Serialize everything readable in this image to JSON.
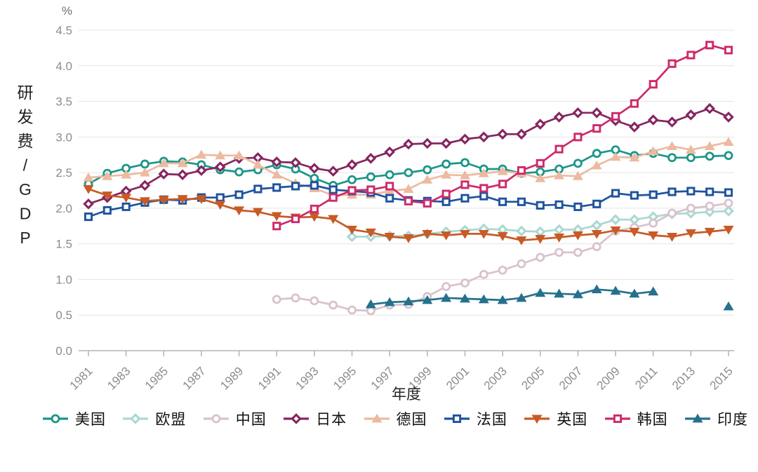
{
  "chart_data": {
    "type": "line",
    "title": "",
    "unit_label": "%",
    "ylabel": "研发费/GDP",
    "xlabel": "年度",
    "ylim": [
      0,
      4.5
    ],
    "y_ticks": [
      0.0,
      0.5,
      1.0,
      1.5,
      2.0,
      2.5,
      3.0,
      3.5,
      4.0,
      4.5
    ],
    "y_tick_labels": [
      "0.0",
      "0.5",
      "1.0",
      "1.5",
      "2.0",
      "2.5",
      "3.0",
      "3.5",
      "4.0",
      "4.5"
    ],
    "x_start": 1981,
    "x_end": 2015,
    "x_tick_labels": [
      "1981",
      "1983",
      "1985",
      "1987",
      "1989",
      "1991",
      "1993",
      "1995",
      "1997",
      "1999",
      "2001",
      "2003",
      "2005",
      "2007",
      "2009",
      "2011",
      "2013",
      "2015"
    ],
    "grid": true,
    "legend_position": "bottom",
    "axis_text_color": "#8c8c8c",
    "grid_color": "#e4e4e4",
    "axis_line_color": "#b3b3b3",
    "series": [
      {
        "name": "美国",
        "key": "usa",
        "color": "#1a9688",
        "marker": "circle",
        "start_year": 1981,
        "values": [
          2.34,
          2.49,
          2.56,
          2.62,
          2.66,
          2.65,
          2.61,
          2.54,
          2.51,
          2.54,
          2.61,
          2.55,
          2.42,
          2.32,
          2.4,
          2.44,
          2.47,
          2.5,
          2.54,
          2.62,
          2.64,
          2.55,
          2.55,
          2.49,
          2.51,
          2.55,
          2.63,
          2.77,
          2.82,
          2.74,
          2.77,
          2.71,
          2.71,
          2.73,
          2.74
        ]
      },
      {
        "name": "欧盟",
        "key": "eu",
        "color": "#abd8d2",
        "marker": "diamond",
        "start_year": 1995,
        "values": [
          1.6,
          1.6,
          1.61,
          1.61,
          1.64,
          1.67,
          1.69,
          1.71,
          1.7,
          1.68,
          1.67,
          1.7,
          1.7,
          1.76,
          1.84,
          1.84,
          1.88,
          1.92,
          1.93,
          1.95,
          1.96
        ]
      },
      {
        "name": "中国",
        "key": "china",
        "color": "#d9c2cc",
        "marker": "circle",
        "start_year": 1991,
        "values": [
          0.72,
          0.74,
          0.7,
          0.64,
          0.57,
          0.56,
          0.64,
          0.65,
          0.76,
          0.9,
          0.95,
          1.07,
          1.13,
          1.22,
          1.31,
          1.38,
          1.38,
          1.46,
          1.68,
          1.73,
          1.79,
          1.93,
          2.0,
          2.03,
          2.07
        ]
      },
      {
        "name": "日本",
        "key": "japan",
        "color": "#85265f",
        "marker": "diamond",
        "start_year": 1981,
        "values": [
          2.06,
          2.15,
          2.24,
          2.32,
          2.48,
          2.47,
          2.53,
          2.58,
          2.7,
          2.71,
          2.65,
          2.64,
          2.56,
          2.52,
          2.61,
          2.7,
          2.79,
          2.9,
          2.91,
          2.91,
          2.97,
          3.0,
          3.04,
          3.04,
          3.18,
          3.28,
          3.34,
          3.34,
          3.23,
          3.14,
          3.24,
          3.21,
          3.31,
          3.4,
          3.28
        ]
      },
      {
        "name": "德国",
        "key": "germany",
        "color": "#ecbaa1",
        "marker": "triangle",
        "start_year": 1981,
        "values": [
          2.43,
          2.45,
          2.47,
          2.5,
          2.63,
          2.63,
          2.75,
          2.74,
          2.74,
          2.61,
          2.47,
          2.35,
          2.28,
          2.18,
          2.19,
          2.19,
          2.24,
          2.27,
          2.4,
          2.47,
          2.46,
          2.49,
          2.52,
          2.49,
          2.42,
          2.46,
          2.45,
          2.6,
          2.72,
          2.71,
          2.8,
          2.87,
          2.82,
          2.87,
          2.93
        ]
      },
      {
        "name": "法国",
        "key": "france",
        "color": "#1e539e",
        "marker": "square",
        "start_year": 1981,
        "values": [
          1.88,
          1.97,
          2.02,
          2.08,
          2.12,
          2.11,
          2.15,
          2.15,
          2.19,
          2.27,
          2.29,
          2.31,
          2.32,
          2.26,
          2.24,
          2.22,
          2.14,
          2.11,
          2.1,
          2.09,
          2.14,
          2.17,
          2.09,
          2.09,
          2.04,
          2.05,
          2.02,
          2.06,
          2.21,
          2.18,
          2.19,
          2.23,
          2.24,
          2.23,
          2.22
        ]
      },
      {
        "name": "英国",
        "key": "uk",
        "color": "#c75b26",
        "marker": "triangle-down",
        "start_year": 1981,
        "values": [
          2.27,
          2.18,
          2.15,
          2.1,
          2.12,
          2.13,
          2.13,
          2.05,
          1.97,
          1.95,
          1.89,
          1.87,
          1.88,
          1.85,
          1.7,
          1.66,
          1.6,
          1.58,
          1.64,
          1.62,
          1.64,
          1.64,
          1.61,
          1.55,
          1.57,
          1.59,
          1.62,
          1.64,
          1.69,
          1.67,
          1.62,
          1.6,
          1.65,
          1.67,
          1.7
        ]
      },
      {
        "name": "韩国",
        "key": "korea",
        "color": "#ce2a6a",
        "marker": "square",
        "start_year": 1991,
        "values": [
          1.75,
          1.85,
          1.99,
          2.15,
          2.25,
          2.26,
          2.31,
          2.1,
          2.07,
          2.2,
          2.33,
          2.28,
          2.34,
          2.53,
          2.63,
          2.83,
          3.0,
          3.12,
          3.29,
          3.47,
          3.74,
          4.03,
          4.15,
          4.29,
          4.22
        ]
      },
      {
        "name": "印度",
        "key": "india",
        "color": "#25718d",
        "marker": "triangle",
        "start_year": 1996,
        "values": [
          0.65,
          0.68,
          0.69,
          0.71,
          0.74,
          0.73,
          0.72,
          0.71,
          0.74,
          0.81,
          0.8,
          0.79,
          0.86,
          0.84,
          0.8,
          0.83,
          null,
          null,
          null,
          0.62
        ]
      }
    ]
  }
}
